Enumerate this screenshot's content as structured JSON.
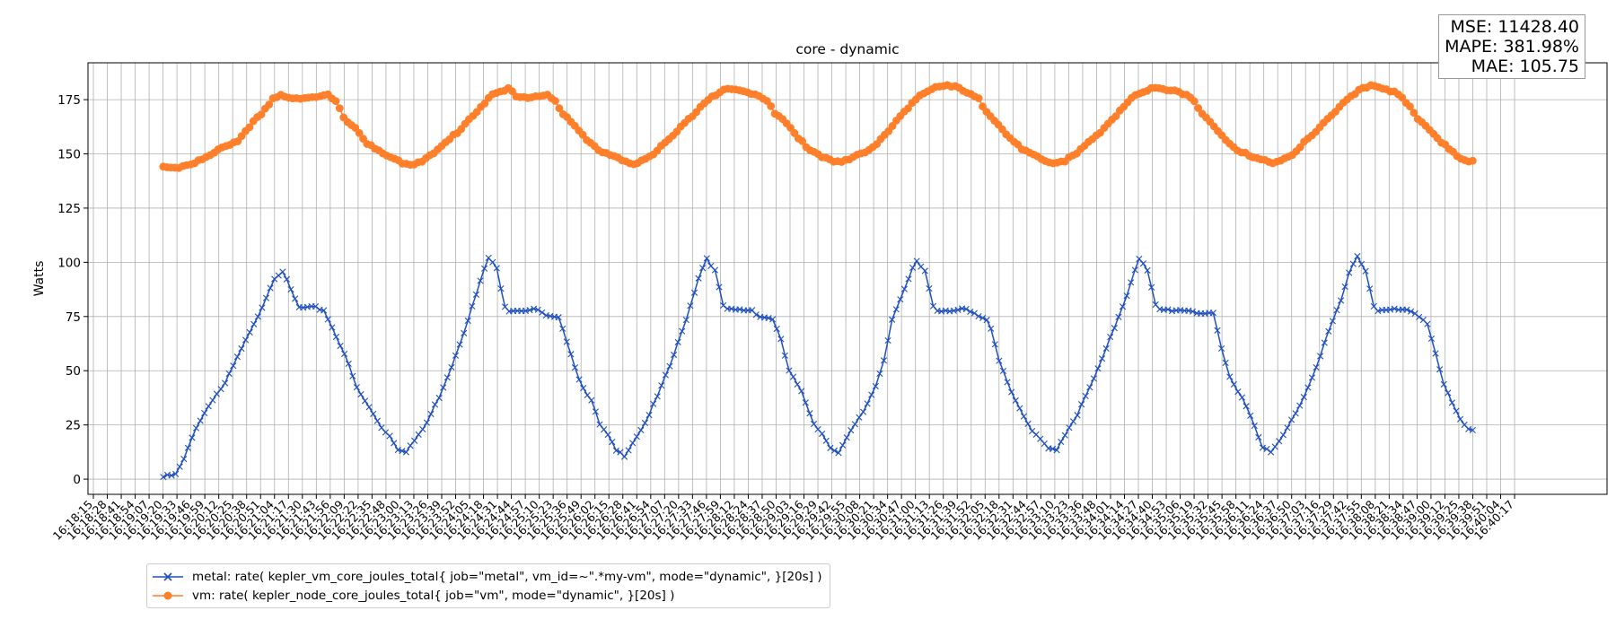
{
  "stats": {
    "mse": "MSE: 11428.40",
    "mape": "MAPE: 381.98%",
    "mae": "MAE: 105.75"
  },
  "legend": {
    "metal": "metal: rate( kepler_vm_core_joules_total{ job=\"metal\", vm_id=~\".*my-vm\", mode=\"dynamic\", }[20s] )",
    "vm": "vm: rate( kepler_node_core_joules_total{ job=\"vm\", mode=\"dynamic\", }[20s] )"
  },
  "chart_data": {
    "type": "line",
    "title": "core - dynamic",
    "xlabel": "",
    "ylabel": "Watts",
    "ylim": [
      -7,
      192
    ],
    "yticks": [
      0,
      25,
      50,
      75,
      100,
      125,
      150,
      175
    ],
    "grid": true,
    "legend_placement": "bottom-left, below axes",
    "x_tick_labels": [
      "16:18:15",
      "16:18:28",
      "16:18:41",
      "16:18:54",
      "16:19:07",
      "16:19:20",
      "16:19:33",
      "16:19:46",
      "16:19:59",
      "16:20:12",
      "16:20:25",
      "16:20:38",
      "16:20:51",
      "16:21:04",
      "16:21:17",
      "16:21:30",
      "16:21:43",
      "16:21:56",
      "16:22:09",
      "16:22:22",
      "16:22:35",
      "16:22:48",
      "16:23:00",
      "16:23:13",
      "16:23:26",
      "16:23:39",
      "16:23:52",
      "16:24:05",
      "16:24:18",
      "16:24:31",
      "16:24:44",
      "16:24:57",
      "16:25:10",
      "16:25:23",
      "16:25:36",
      "16:25:49",
      "16:26:02",
      "16:26:15",
      "16:26:28",
      "16:26:41",
      "16:26:54",
      "16:27:07",
      "16:27:20",
      "16:27:33",
      "16:27:46",
      "16:27:59",
      "16:28:12",
      "16:28:24",
      "16:28:37",
      "16:28:50",
      "16:29:03",
      "16:29:16",
      "16:29:29",
      "16:29:42",
      "16:29:55",
      "16:30:08",
      "16:30:21",
      "16:30:34",
      "16:30:47",
      "16:31:00",
      "16:31:13",
      "16:31:26",
      "16:31:39",
      "16:31:52",
      "16:32:05",
      "16:32:18",
      "16:32:31",
      "16:32:44",
      "16:32:57",
      "16:33:10",
      "16:33:23",
      "16:33:36",
      "16:33:48",
      "16:34:01",
      "16:34:14",
      "16:34:27",
      "16:34:40",
      "16:34:53",
      "16:35:06",
      "16:35:19",
      "16:35:32",
      "16:35:45",
      "16:35:58",
      "16:36:11",
      "16:36:24",
      "16:36:37",
      "16:36:50",
      "16:37:03",
      "16:37:16",
      "16:37:29",
      "16:37:42",
      "16:37:55",
      "16:38:08",
      "16:38:21",
      "16:38:34",
      "16:38:47",
      "16:39:00",
      "16:39:12",
      "16:39:25",
      "16:39:38",
      "16:39:51",
      "16:40:04",
      "16:40:17"
    ],
    "x_sample_start": "16:19:20",
    "x_sample_end": "16:39:38",
    "series": [
      {
        "name": "metal: rate( kepler_vm_core_joules_total{ job=\"metal\", vm_id=~\".*my-vm\", mode=\"dynamic\", }[20s] )",
        "color": "#1f4fbf",
        "marker": "x",
        "keypoints": [
          [
            0,
            1
          ],
          [
            3,
            2
          ],
          [
            5,
            9
          ],
          [
            8,
            24
          ],
          [
            12,
            37
          ],
          [
            15,
            44
          ],
          [
            19,
            60
          ],
          [
            22,
            71
          ],
          [
            25,
            84
          ],
          [
            27,
            93
          ],
          [
            29,
            96
          ],
          [
            31,
            87
          ],
          [
            33,
            79
          ],
          [
            37,
            79
          ],
          [
            39,
            78
          ],
          [
            41,
            70
          ],
          [
            44,
            58
          ],
          [
            47,
            42
          ],
          [
            50,
            33
          ],
          [
            53,
            24
          ],
          [
            55,
            20
          ],
          [
            57,
            14
          ],
          [
            59,
            13
          ],
          [
            62,
            20
          ],
          [
            64,
            26
          ],
          [
            67,
            38
          ],
          [
            70,
            52
          ],
          [
            73,
            68
          ],
          [
            76,
            85
          ],
          [
            78,
            97
          ],
          [
            79,
            102
          ],
          [
            81,
            97
          ],
          [
            83,
            80
          ],
          [
            84,
            78
          ],
          [
            91,
            78
          ],
          [
            93,
            75
          ],
          [
            96,
            74
          ],
          [
            97,
            70
          ],
          [
            99,
            58
          ],
          [
            101,
            46
          ],
          [
            104,
            36
          ],
          [
            106,
            25
          ],
          [
            108,
            20
          ],
          [
            110,
            13
          ],
          [
            112,
            11
          ],
          [
            115,
            20
          ],
          [
            117,
            26
          ],
          [
            120,
            38
          ],
          [
            123,
            52
          ],
          [
            126,
            68
          ],
          [
            128,
            80
          ],
          [
            130,
            93
          ],
          [
            132,
            102
          ],
          [
            134,
            96
          ],
          [
            136,
            80
          ],
          [
            137,
            78
          ],
          [
            143,
            78
          ],
          [
            145,
            75
          ],
          [
            148,
            74
          ],
          [
            150,
            64
          ],
          [
            152,
            50
          ],
          [
            155,
            40
          ],
          [
            158,
            26
          ],
          [
            160,
            21
          ],
          [
            162,
            15
          ],
          [
            164,
            12
          ],
          [
            167,
            22
          ],
          [
            170,
            31
          ],
          [
            173,
            43
          ],
          [
            175,
            55
          ],
          [
            177,
            74
          ],
          [
            180,
            87
          ],
          [
            182,
            97
          ],
          [
            183,
            100
          ],
          [
            185,
            96
          ],
          [
            187,
            80
          ],
          [
            188,
            78
          ],
          [
            195,
            78
          ],
          [
            197,
            76
          ],
          [
            200,
            73
          ],
          [
            201,
            70
          ],
          [
            203,
            55
          ],
          [
            205,
            45
          ],
          [
            208,
            32
          ],
          [
            211,
            22
          ],
          [
            213,
            18
          ],
          [
            215,
            14
          ],
          [
            217,
            14
          ],
          [
            220,
            24
          ],
          [
            222,
            30
          ],
          [
            225,
            42
          ],
          [
            228,
            55
          ],
          [
            231,
            70
          ],
          [
            234,
            85
          ],
          [
            236,
            97
          ],
          [
            237,
            102
          ],
          [
            239,
            96
          ],
          [
            241,
            80
          ],
          [
            242,
            78
          ],
          [
            249,
            78
          ],
          [
            251,
            77
          ],
          [
            254,
            76
          ],
          [
            255,
            76
          ],
          [
            257,
            60
          ],
          [
            259,
            47
          ],
          [
            262,
            38
          ],
          [
            265,
            25
          ],
          [
            267,
            15
          ],
          [
            269,
            12
          ],
          [
            272,
            20
          ],
          [
            274,
            27
          ],
          [
            277,
            38
          ],
          [
            280,
            52
          ],
          [
            283,
            68
          ],
          [
            286,
            82
          ],
          [
            288,
            95
          ],
          [
            290,
            103
          ],
          [
            292,
            96
          ],
          [
            294,
            80
          ],
          [
            295,
            78
          ],
          [
            301,
            78
          ],
          [
            303,
            77
          ],
          [
            306,
            74
          ],
          [
            307,
            72
          ],
          [
            309,
            58
          ],
          [
            311,
            44
          ],
          [
            313,
            35
          ],
          [
            315,
            27
          ],
          [
            317,
            23
          ],
          [
            318,
            22
          ]
        ]
      },
      {
        "name": "vm: rate( kepler_node_core_joules_total{ job=\"vm\", mode=\"dynamic\", }[20s] )",
        "color": "#ff7f2a",
        "marker": "o",
        "keypoints": [
          [
            0,
            144
          ],
          [
            4,
            144
          ],
          [
            8,
            146
          ],
          [
            12,
            149
          ],
          [
            16,
            154
          ],
          [
            19,
            156
          ],
          [
            22,
            163
          ],
          [
            25,
            168
          ],
          [
            28,
            175
          ],
          [
            30,
            177
          ],
          [
            33,
            176
          ],
          [
            37,
            176
          ],
          [
            40,
            176
          ],
          [
            42,
            177
          ],
          [
            44,
            174
          ],
          [
            46,
            167
          ],
          [
            49,
            162
          ],
          [
            52,
            155
          ],
          [
            55,
            151
          ],
          [
            58,
            148
          ],
          [
            61,
            146
          ],
          [
            63,
            145
          ],
          [
            66,
            147
          ],
          [
            69,
            150
          ],
          [
            72,
            155
          ],
          [
            75,
            160
          ],
          [
            78,
            166
          ],
          [
            81,
            172
          ],
          [
            84,
            177
          ],
          [
            87,
            179
          ],
          [
            88,
            180
          ],
          [
            90,
            177
          ],
          [
            93,
            176
          ],
          [
            96,
            177
          ],
          [
            98,
            177
          ],
          [
            100,
            174
          ],
          [
            102,
            168
          ],
          [
            105,
            163
          ],
          [
            108,
            157
          ],
          [
            111,
            152
          ],
          [
            114,
            149
          ],
          [
            117,
            147
          ],
          [
            119,
            145
          ],
          [
            122,
            147
          ],
          [
            125,
            150
          ],
          [
            128,
            155
          ],
          [
            131,
            160
          ],
          [
            134,
            166
          ],
          [
            137,
            172
          ],
          [
            140,
            177
          ],
          [
            143,
            179
          ],
          [
            144,
            180
          ],
          [
            147,
            179
          ],
          [
            150,
            178
          ],
          [
            152,
            177
          ],
          [
            154,
            175
          ],
          [
            156,
            169
          ],
          [
            159,
            164
          ],
          [
            162,
            157
          ],
          [
            165,
            152
          ],
          [
            168,
            149
          ],
          [
            171,
            147
          ],
          [
            173,
            146
          ],
          [
            176,
            148
          ],
          [
            179,
            151
          ],
          [
            182,
            155
          ],
          [
            185,
            161
          ],
          [
            188,
            167
          ],
          [
            191,
            173
          ],
          [
            194,
            178
          ],
          [
            197,
            181
          ],
          [
            200,
            182
          ],
          [
            203,
            180
          ],
          [
            206,
            177
          ],
          [
            208,
            175
          ],
          [
            210,
            170
          ],
          [
            213,
            164
          ],
          [
            216,
            157
          ],
          [
            219,
            152
          ],
          [
            222,
            149
          ],
          [
            225,
            147
          ],
          [
            227,
            146
          ],
          [
            230,
            147
          ],
          [
            233,
            150
          ],
          [
            236,
            155
          ],
          [
            239,
            160
          ],
          [
            242,
            166
          ],
          [
            245,
            172
          ],
          [
            248,
            177
          ],
          [
            251,
            179
          ],
          [
            253,
            181
          ],
          [
            256,
            180
          ],
          [
            259,
            179
          ],
          [
            261,
            177
          ],
          [
            263,
            174
          ],
          [
            265,
            168
          ],
          [
            268,
            163
          ],
          [
            271,
            157
          ],
          [
            274,
            152
          ],
          [
            277,
            149
          ],
          [
            280,
            147
          ],
          [
            282,
            146
          ],
          [
            285,
            147
          ],
          [
            288,
            150
          ],
          [
            291,
            155
          ],
          [
            294,
            160
          ],
          [
            297,
            166
          ],
          [
            300,
            172
          ],
          [
            303,
            177
          ],
          [
            306,
            180
          ],
          [
            308,
            181
          ],
          [
            311,
            180
          ],
          [
            314,
            179
          ],
          [
            316,
            176
          ],
          [
            318,
            172
          ],
          [
            320,
            166
          ],
          [
            323,
            161
          ],
          [
            326,
            155
          ],
          [
            329,
            151
          ],
          [
            331,
            148
          ],
          [
            333,
            147
          ],
          [
            334,
            147
          ]
        ]
      }
    ]
  }
}
